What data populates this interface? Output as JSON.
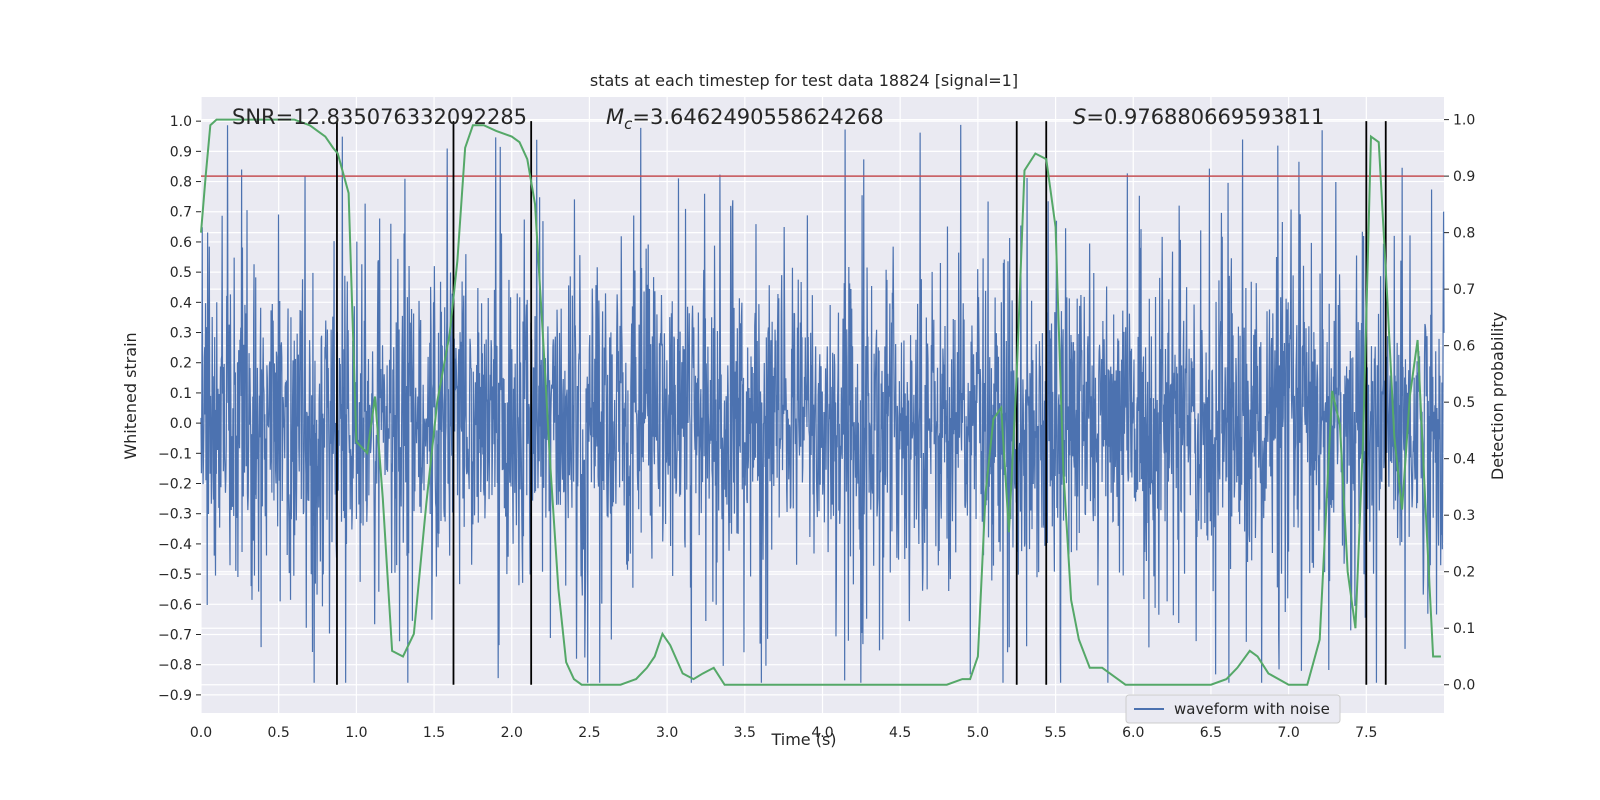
{
  "chart_data": {
    "type": "line",
    "title": "stats at each timestep for test data 18824 [signal=1]",
    "xlabel": "Time (s)",
    "ylabel_left": "Whitened strain",
    "ylabel_right": "Detection probability",
    "xlim": [
      0.0,
      8.0
    ],
    "ylim_left": [
      -0.96,
      1.08
    ],
    "ylim_right": [
      -0.05,
      1.04
    ],
    "x_ticks": [
      0.0,
      0.5,
      1.0,
      1.5,
      2.0,
      2.5,
      3.0,
      3.5,
      4.0,
      4.5,
      5.0,
      5.5,
      6.0,
      6.5,
      7.0,
      7.5
    ],
    "x_tick_labels": [
      "0.0",
      "0.5",
      "1.0",
      "1.5",
      "2.0",
      "2.5",
      "3.0",
      "3.5",
      "4.0",
      "4.5",
      "5.0",
      "5.5",
      "6.0",
      "6.5",
      "7.0",
      "7.5"
    ],
    "y_ticks_left": [
      -0.9,
      -0.8,
      -0.7,
      -0.6,
      -0.5,
      -0.4,
      -0.3,
      -0.2,
      -0.1,
      0.0,
      0.1,
      0.2,
      0.3,
      0.4,
      0.5,
      0.6,
      0.7,
      0.8,
      0.9,
      1.0
    ],
    "y_tick_labels_left": [
      "−0.9",
      "−0.8",
      "−0.7",
      "−0.6",
      "−0.5",
      "−0.4",
      "−0.3",
      "−0.2",
      "−0.1",
      "0.0",
      "0.1",
      "0.2",
      "0.3",
      "0.4",
      "0.5",
      "0.6",
      "0.7",
      "0.8",
      "0.9",
      "1.0"
    ],
    "y_ticks_right": [
      0.0,
      0.1,
      0.2,
      0.3,
      0.4,
      0.5,
      0.6,
      0.7,
      0.8,
      0.9,
      1.0
    ],
    "y_tick_labels_right": [
      "0.0",
      "0.1",
      "0.2",
      "0.3",
      "0.4",
      "0.5",
      "0.6",
      "0.7",
      "0.8",
      "0.9",
      "1.0"
    ],
    "grid": true,
    "legend": {
      "position": "bottom-right",
      "entries": [
        "waveform with noise"
      ]
    },
    "annotations": {
      "snr": "SNR=12.835076332092285",
      "mc_symbol": "M",
      "mc_sub": "c",
      "mc_value": "=3.6462490558624268",
      "s_symbol": "S",
      "s_value": "=0.976880669593811"
    },
    "threshold_right": 0.9,
    "vertical_lines_x": [
      0.875,
      1.625,
      2.125,
      5.25,
      5.44,
      7.5,
      7.625
    ],
    "waveform": {
      "name": "waveform with noise",
      "amplitude_typical": 0.45,
      "amplitude_max": 1.0,
      "duration": 8.0
    },
    "probability_series": {
      "x": [
        0.0,
        0.03,
        0.06,
        0.1,
        0.15,
        0.2,
        0.3,
        0.4,
        0.5,
        0.6,
        0.7,
        0.75,
        0.8,
        0.85,
        0.88,
        0.9,
        0.95,
        1.0,
        1.07,
        1.12,
        1.17,
        1.23,
        1.3,
        1.37,
        1.45,
        1.52,
        1.6,
        1.65,
        1.7,
        1.75,
        1.82,
        1.9,
        2.0,
        2.05,
        2.1,
        2.15,
        2.2,
        2.25,
        2.3,
        2.35,
        2.4,
        2.45,
        2.5,
        2.6,
        2.7,
        2.8,
        2.87,
        2.92,
        2.97,
        3.02,
        3.1,
        3.17,
        3.23,
        3.3,
        3.37,
        3.5,
        3.7,
        4.0,
        4.3,
        4.6,
        4.8,
        4.9,
        4.95,
        5.0,
        5.05,
        5.1,
        5.15,
        5.2,
        5.25,
        5.3,
        5.37,
        5.44,
        5.5,
        5.55,
        5.6,
        5.65,
        5.72,
        5.8,
        5.85,
        5.9,
        5.95,
        6.0,
        6.2,
        6.5,
        6.6,
        6.67,
        6.75,
        6.8,
        6.87,
        7.0,
        7.12,
        7.2,
        7.28,
        7.33,
        7.38,
        7.43,
        7.48,
        7.53,
        7.58,
        7.63,
        7.68,
        7.73,
        7.78,
        7.83,
        7.88,
        7.93,
        7.98
      ],
      "y": [
        0.8,
        0.9,
        0.99,
        1.0,
        1.0,
        1.0,
        1.0,
        1.0,
        1.0,
        1.0,
        0.99,
        0.98,
        0.97,
        0.95,
        0.94,
        0.92,
        0.87,
        0.43,
        0.41,
        0.51,
        0.33,
        0.06,
        0.05,
        0.09,
        0.32,
        0.5,
        0.62,
        0.75,
        0.95,
        0.99,
        0.99,
        0.98,
        0.97,
        0.96,
        0.93,
        0.85,
        0.62,
        0.38,
        0.17,
        0.04,
        0.01,
        0.0,
        0.0,
        0.0,
        0.0,
        0.01,
        0.03,
        0.05,
        0.09,
        0.07,
        0.02,
        0.01,
        0.02,
        0.03,
        0.0,
        0.0,
        0.0,
        0.0,
        0.0,
        0.0,
        0.0,
        0.01,
        0.01,
        0.05,
        0.34,
        0.47,
        0.49,
        0.27,
        0.55,
        0.91,
        0.94,
        0.93,
        0.81,
        0.38,
        0.15,
        0.08,
        0.03,
        0.03,
        0.02,
        0.01,
        0.0,
        0.0,
        0.0,
        0.0,
        0.01,
        0.03,
        0.06,
        0.05,
        0.02,
        0.0,
        0.0,
        0.08,
        0.52,
        0.46,
        0.2,
        0.1,
        0.44,
        0.97,
        0.96,
        0.71,
        0.44,
        0.31,
        0.51,
        0.61,
        0.32,
        0.05,
        0.05
      ]
    },
    "colors": {
      "background": "#eaeaf2",
      "grid": "#ffffff",
      "waveform": "#4c72b0",
      "probability": "#55a868",
      "threshold": "#c44e52",
      "vlines": "#000000",
      "text": "#262626"
    }
  }
}
